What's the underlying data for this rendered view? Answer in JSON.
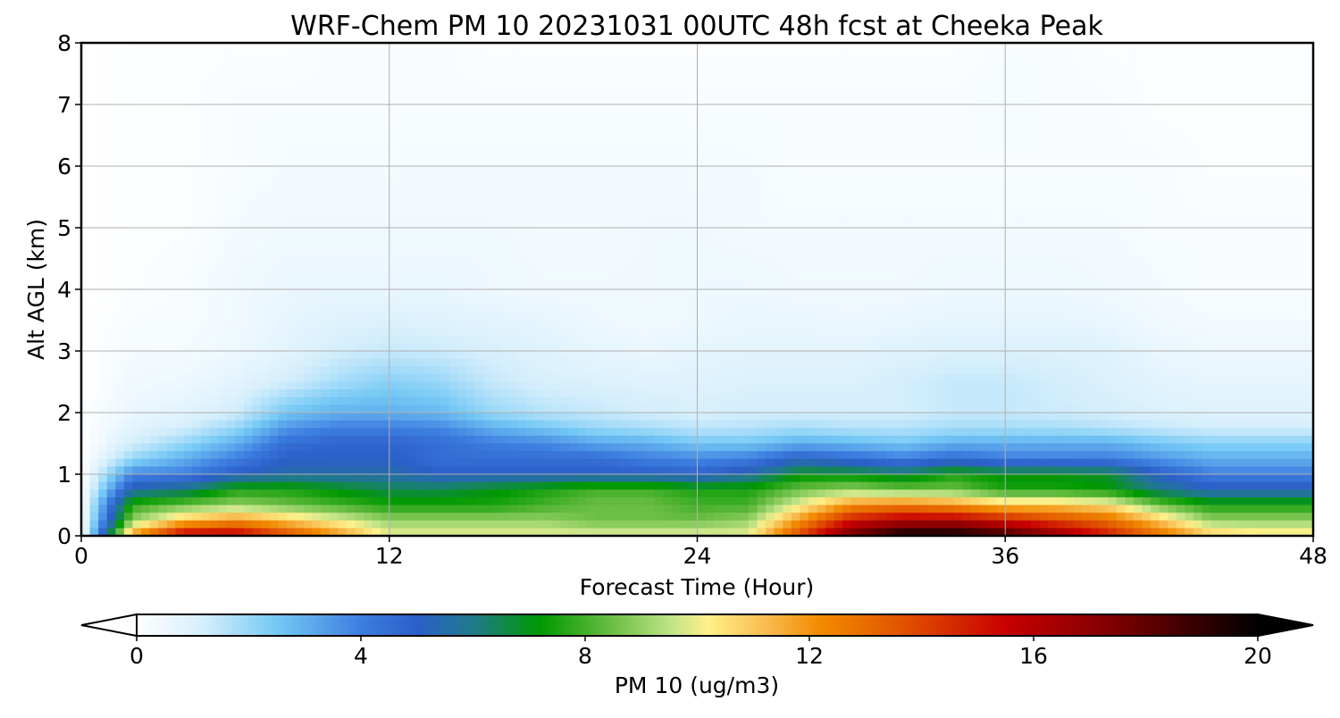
{
  "chart_data": {
    "type": "heatmap",
    "title": "WRF-Chem PM 10  20231031 00UTC 48h fcst at Cheeka Peak",
    "xlabel": "Forecast Time (Hour)",
    "ylabel": "Alt AGL (km)",
    "xlim": [
      0,
      48
    ],
    "ylim": [
      0,
      8
    ],
    "xticks": [
      0,
      12,
      24,
      36,
      48
    ],
    "yticks": [
      0,
      1,
      2,
      3,
      4,
      5,
      6,
      7,
      8
    ],
    "grid": true,
    "colorbar": {
      "label": "PM 10  (ug/m3)",
      "ticks": [
        0,
        4,
        8,
        12,
        16,
        20
      ],
      "range": [
        0,
        20
      ],
      "extend": "both",
      "orientation": "horizontal",
      "stops": [
        {
          "v": 0,
          "color": "#ffffff"
        },
        {
          "v": 1.2,
          "color": "#d4eefc"
        },
        {
          "v": 2.5,
          "color": "#74c8f5"
        },
        {
          "v": 4,
          "color": "#3d7ee0"
        },
        {
          "v": 5,
          "color": "#2c5fc9"
        },
        {
          "v": 6,
          "color": "#1f7a8a"
        },
        {
          "v": 7.2,
          "color": "#009900"
        },
        {
          "v": 8.3,
          "color": "#5cb83a"
        },
        {
          "v": 9.6,
          "color": "#c6e58a"
        },
        {
          "v": 10.2,
          "color": "#fff08a"
        },
        {
          "v": 11.3,
          "color": "#f8b84a"
        },
        {
          "v": 12.2,
          "color": "#f28a00"
        },
        {
          "v": 13.5,
          "color": "#e35a00"
        },
        {
          "v": 15.5,
          "color": "#c80000"
        },
        {
          "v": 17.5,
          "color": "#7a0000"
        },
        {
          "v": 20,
          "color": "#000000"
        }
      ]
    },
    "time_hours": [
      0,
      2,
      4,
      6,
      8,
      10,
      12,
      14,
      16,
      18,
      20,
      22,
      24,
      26,
      28,
      30,
      32,
      34,
      36,
      38,
      40,
      42,
      44,
      46,
      48
    ],
    "altitudes_km": [
      0,
      0.25,
      0.5,
      0.75,
      1.0,
      1.25,
      1.5,
      1.75,
      2.0,
      2.5,
      3.0,
      3.5,
      4.0,
      5.0,
      6.0,
      7.0,
      8.0
    ],
    "values": [
      [
        0,
        12,
        16,
        16,
        14,
        12,
        10,
        10,
        10,
        10,
        10,
        10,
        10,
        10,
        14,
        18,
        20,
        20,
        19,
        17,
        15,
        13,
        11,
        10.5,
        10.5
      ],
      [
        0,
        9,
        11,
        12,
        11,
        10,
        9,
        9,
        9,
        9,
        8.5,
        8.5,
        8.5,
        9,
        12,
        15,
        16,
        16,
        15,
        14,
        13,
        11,
        9,
        9,
        9
      ],
      [
        0,
        7.8,
        8.5,
        9,
        8.5,
        8,
        7.5,
        7.5,
        7.5,
        8,
        8.5,
        8.5,
        8,
        8,
        10,
        12,
        12.5,
        12,
        11,
        11,
        10.5,
        8.5,
        7.5,
        7.5,
        7.5
      ],
      [
        0,
        5.5,
        6,
        7.5,
        7.5,
        7,
        6.5,
        6.5,
        7,
        7.5,
        8,
        8,
        7.5,
        7.5,
        8.5,
        9,
        8.5,
        8.5,
        7.5,
        7.5,
        7.2,
        6,
        5.2,
        5.2,
        5.2
      ],
      [
        0,
        3.8,
        4,
        5,
        5.5,
        5.5,
        5.5,
        5,
        5,
        5,
        5,
        5,
        4.8,
        5.5,
        7,
        7,
        6.5,
        7.5,
        7,
        7,
        6.8,
        5,
        4,
        4,
        4
      ],
      [
        0,
        2,
        3,
        4,
        5,
        5,
        5,
        4.5,
        4.5,
        4.5,
        4.5,
        4,
        3.8,
        4,
        5,
        4.5,
        4,
        4.5,
        4,
        4,
        4,
        3.5,
        3,
        3,
        3
      ],
      [
        0,
        1.2,
        2,
        3,
        4.5,
        4.8,
        4.8,
        4.5,
        4,
        3.8,
        3.2,
        3,
        2.5,
        2.5,
        3,
        2.8,
        2.5,
        3,
        3,
        3,
        3,
        2.5,
        2.2,
        2.2,
        2.2
      ],
      [
        0,
        0.8,
        1.2,
        2,
        3.5,
        4,
        4,
        3.8,
        3,
        2.5,
        2,
        1.8,
        1.5,
        1.6,
        1.8,
        1.6,
        1.6,
        1.8,
        1.8,
        1.8,
        1.6,
        1.4,
        1.2,
        1.2,
        1.2
      ],
      [
        0,
        0.6,
        0.8,
        1.2,
        2.5,
        3,
        3,
        2.8,
        2,
        1.6,
        1.4,
        1.2,
        1.1,
        1.2,
        1.2,
        1.2,
        1.2,
        1.4,
        1.4,
        1.3,
        1.2,
        1,
        0.9,
        0.9,
        0.9
      ],
      [
        0,
        0.4,
        0.5,
        0.8,
        1.2,
        1.8,
        2.2,
        2,
        1.4,
        1.1,
        1,
        0.9,
        0.9,
        1,
        1,
        1,
        1.2,
        1.4,
        1.4,
        1.2,
        1,
        0.8,
        0.7,
        0.7,
        0.7
      ],
      [
        0,
        0.3,
        0.3,
        0.5,
        0.8,
        1.2,
        1.4,
        1.3,
        1.1,
        0.9,
        0.7,
        0.6,
        0.7,
        0.8,
        0.8,
        0.8,
        0.9,
        1,
        1,
        1,
        0.9,
        0.6,
        0.5,
        0.5,
        0.5
      ],
      [
        0,
        0.2,
        0.2,
        0.4,
        0.7,
        0.9,
        1,
        0.9,
        0.8,
        0.7,
        0.5,
        0.4,
        0.5,
        0.6,
        0.6,
        0.5,
        0.6,
        0.7,
        0.7,
        0.7,
        0.6,
        0.4,
        0.3,
        0.3,
        0.3
      ],
      [
        0,
        0.1,
        0.2,
        0.4,
        0.6,
        0.6,
        0.6,
        0.6,
        0.5,
        0.4,
        0.4,
        0.4,
        0.5,
        0.5,
        0.4,
        0.4,
        0.4,
        0.5,
        0.5,
        0.5,
        0.4,
        0.3,
        0.2,
        0.2,
        0.2
      ],
      [
        0,
        0.1,
        0.1,
        0.3,
        0.4,
        0.4,
        0.4,
        0.4,
        0.4,
        0.3,
        0.3,
        0.4,
        0.4,
        0.3,
        0.3,
        0.3,
        0.3,
        0.3,
        0.3,
        0.3,
        0.3,
        0.2,
        0.2,
        0.2,
        0.2
      ],
      [
        0,
        0.1,
        0.1,
        0.2,
        0.3,
        0.3,
        0.3,
        0.3,
        0.3,
        0.3,
        0.3,
        0.3,
        0.3,
        0.3,
        0.2,
        0.2,
        0.2,
        0.2,
        0.2,
        0.2,
        0.2,
        0.2,
        0.1,
        0.1,
        0.1
      ],
      [
        0,
        0.1,
        0.1,
        0.2,
        0.2,
        0.2,
        0.2,
        0.2,
        0.2,
        0.2,
        0.2,
        0.2,
        0.2,
        0.2,
        0.2,
        0.2,
        0.2,
        0.2,
        0.3,
        0.2,
        0.2,
        0.1,
        0.1,
        0.1,
        0.1
      ],
      [
        0,
        0.1,
        0.1,
        0.1,
        0.1,
        0.2,
        0.2,
        0.2,
        0.1,
        0.1,
        0.1,
        0.1,
        0.1,
        0.1,
        0.1,
        0.1,
        0.1,
        0.1,
        0.2,
        0.2,
        0.1,
        0.1,
        0.1,
        0.1,
        0.1
      ]
    ]
  }
}
